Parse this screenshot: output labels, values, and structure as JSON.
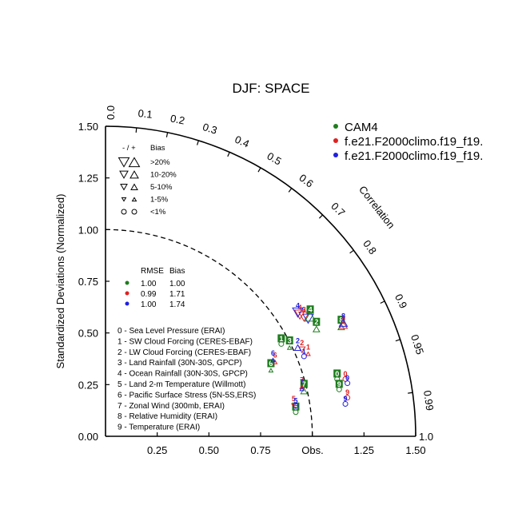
{
  "chart_data": {
    "type": "scatter",
    "subtype": "taylor-diagram",
    "title": "DJF: SPACE",
    "ylabel": "Standardized Deviations (Normalized)",
    "xlabel": "Obs.",
    "arc_label": "Correlation",
    "ylim": [
      0,
      1.5
    ],
    "xlim": [
      0,
      1.5
    ],
    "y_ticks": [
      "0.00",
      "0.25",
      "0.50",
      "0.75",
      "1.00",
      "1.25",
      "1.50"
    ],
    "x_ticks": [
      "0.25",
      "0.50",
      "0.75",
      "1.25",
      "1.50"
    ],
    "x_tick_values": [
      0.25,
      0.5,
      0.75,
      1.25,
      1.5
    ],
    "right_label": "1.0",
    "top_label": "0.0",
    "correlation_ticks": [
      "0.1",
      "0.2",
      "0.3",
      "0.4",
      "0.5",
      "0.6",
      "0.7",
      "0.8",
      "0.9",
      "0.95",
      "0.99"
    ],
    "correlation_values": [
      0.1,
      0.2,
      0.3,
      0.4,
      0.5,
      0.6,
      0.7,
      0.8,
      0.9,
      0.95,
      0.99
    ],
    "reference_arc": 1.0,
    "models": [
      {
        "name": "CAM4",
        "color": "#1e7d1e"
      },
      {
        "name": "f.e21.F2000climo.f19_f19.",
        "color": "#e02020"
      },
      {
        "name": "f.e21.F2000climo.f19_f19.",
        "color": "#2020e0"
      }
    ],
    "rmse_bias_table": {
      "headers": [
        "RMSE",
        "Bias"
      ],
      "rows": [
        {
          "rmse": "1.00",
          "bias": "1.00"
        },
        {
          "rmse": "0.99",
          "bias": "1.71"
        },
        {
          "rmse": "1.00",
          "bias": "1.74"
        }
      ]
    },
    "bias_legend": {
      "header_signs": "- / +",
      "header": "Bias",
      "rows": [
        {
          "label": ">20%",
          "size": 13
        },
        {
          "label": "10-20%",
          "size": 10
        },
        {
          "label": "5-10%",
          "size": 8
        },
        {
          "label": "1-5%",
          "size": 5
        },
        {
          "label": "<1%",
          "size": 0
        }
      ]
    },
    "variables": [
      "0 - Sea Level Pressure (ERAI)",
      "1 - SW Cloud Forcing (CERES-EBAF)",
      "2 - LW Cloud Forcing (CERES-EBAF)",
      "3 - Land Rainfall (30N-30S, GPCP)",
      "4 - Ocean Rainfall (30N-30S, GPCP)",
      "5 - Land 2-m Temperature (Willmott)",
      "6 - Pacific Surface Stress (5N-5S,ERS)",
      "7 - Zonal Wind (300mb, ERAI)",
      "8 - Relative Humidity (ERAI)",
      "9 - Temperature (ERAI)"
    ],
    "points": [
      {
        "model": 0,
        "label": "0",
        "x": 1.12,
        "y": 0.3,
        "marker": "circle",
        "dir": "none"
      },
      {
        "model": 1,
        "label": "0",
        "x": 1.16,
        "y": 0.3,
        "marker": "circle",
        "dir": "none"
      },
      {
        "model": 2,
        "label": "0",
        "x": 1.17,
        "y": 0.28,
        "marker": "circle",
        "dir": "none"
      },
      {
        "model": 0,
        "label": "1",
        "x": 0.85,
        "y": 0.47,
        "marker": "circle",
        "dir": "none"
      },
      {
        "model": 1,
        "label": "1",
        "x": 0.98,
        "y": 0.43,
        "marker": "triangle",
        "dir": "up",
        "size": 5
      },
      {
        "model": 2,
        "label": "1",
        "x": 0.96,
        "y": 0.41,
        "marker": "circle",
        "dir": "none"
      },
      {
        "model": 0,
        "label": "2",
        "x": 1.02,
        "y": 0.55,
        "marker": "triangle",
        "dir": "up",
        "size": 8
      },
      {
        "model": 1,
        "label": "2",
        "x": 0.95,
        "y": 0.45,
        "marker": "triangle",
        "dir": "down",
        "size": 8
      },
      {
        "model": 2,
        "label": "2",
        "x": 0.93,
        "y": 0.46,
        "marker": "triangle",
        "dir": "up",
        "size": 8
      },
      {
        "model": 0,
        "label": "3",
        "x": 0.89,
        "y": 0.46,
        "marker": "triangle",
        "dir": "up",
        "size": 5
      },
      {
        "model": 1,
        "label": "3",
        "x": 0.96,
        "y": 0.61,
        "marker": "triangle",
        "dir": "down",
        "size": 13
      },
      {
        "model": 2,
        "label": "3",
        "x": 0.98,
        "y": 0.6,
        "marker": "triangle",
        "dir": "down",
        "size": 13
      },
      {
        "model": 0,
        "label": "4",
        "x": 0.99,
        "y": 0.61,
        "marker": "triangle",
        "dir": "up",
        "size": 13
      },
      {
        "model": 1,
        "label": "4",
        "x": 0.94,
        "y": 0.62,
        "marker": "triangle",
        "dir": "down",
        "size": 13
      },
      {
        "model": 2,
        "label": "4",
        "x": 0.93,
        "y": 0.63,
        "marker": "triangle",
        "dir": "down",
        "size": 13
      },
      {
        "model": 0,
        "label": "5",
        "x": 0.92,
        "y": 0.14,
        "marker": "circle",
        "dir": "none"
      },
      {
        "model": 1,
        "label": "5",
        "x": 0.91,
        "y": 0.18,
        "marker": "triangle",
        "dir": "down",
        "size": 5
      },
      {
        "model": 2,
        "label": "5",
        "x": 0.92,
        "y": 0.17,
        "marker": "circle",
        "dir": "none"
      },
      {
        "model": 0,
        "label": "6",
        "x": 0.8,
        "y": 0.35,
        "marker": "triangle",
        "dir": "up",
        "size": 5
      },
      {
        "model": 1,
        "label": "6",
        "x": 0.82,
        "y": 0.39,
        "marker": "triangle",
        "dir": "up",
        "size": 5
      },
      {
        "model": 2,
        "label": "6",
        "x": 0.81,
        "y": 0.4,
        "marker": "triangle",
        "dir": "up",
        "size": 5
      },
      {
        "model": 0,
        "label": "7",
        "x": 0.96,
        "y": 0.25,
        "marker": "triangle",
        "dir": "up",
        "size": 8
      },
      {
        "model": 1,
        "label": "7",
        "x": 0.95,
        "y": 0.27,
        "marker": "triangle",
        "dir": "up",
        "size": 5
      },
      {
        "model": 2,
        "label": "7",
        "x": 0.95,
        "y": 0.26,
        "marker": "triangle",
        "dir": "up",
        "size": 5
      },
      {
        "model": 0,
        "label": "8",
        "x": 1.14,
        "y": 0.56,
        "marker": "triangle",
        "dir": "up",
        "size": 8
      },
      {
        "model": 1,
        "label": "8",
        "x": 1.15,
        "y": 0.57,
        "marker": "triangle",
        "dir": "up",
        "size": 10
      },
      {
        "model": 2,
        "label": "8",
        "x": 1.15,
        "y": 0.58,
        "marker": "triangle",
        "dir": "up",
        "size": 10
      },
      {
        "model": 0,
        "label": "9",
        "x": 1.13,
        "y": 0.25,
        "marker": "circle",
        "dir": "none"
      },
      {
        "model": 1,
        "label": "9",
        "x": 1.17,
        "y": 0.21,
        "marker": "circle",
        "dir": "none"
      },
      {
        "model": 2,
        "label": "9",
        "x": 1.16,
        "y": 0.18,
        "marker": "circle",
        "dir": "none"
      }
    ]
  }
}
